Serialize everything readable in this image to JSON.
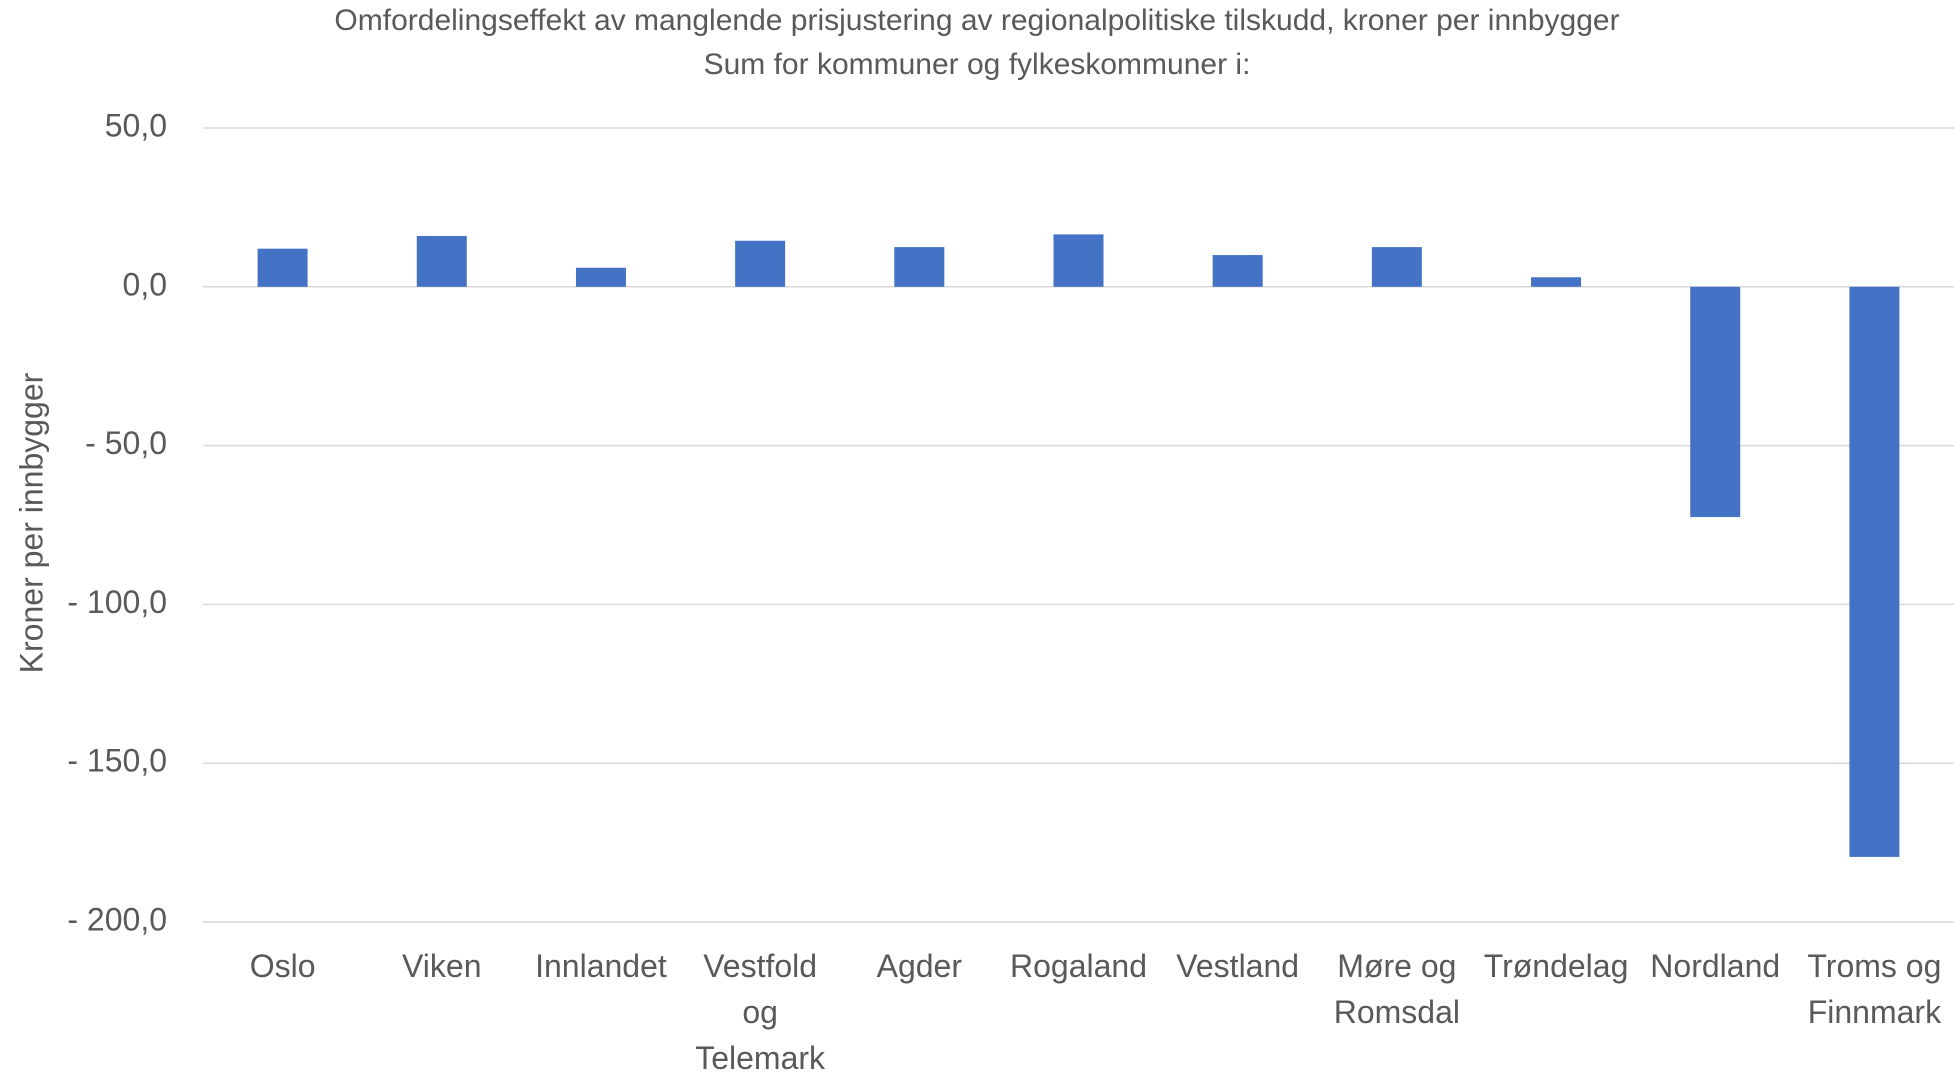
{
  "chart_data": {
    "type": "bar",
    "title": "Omfordelingseffekt av manglende prisjustering av regionalpolitiske tilskudd, kroner per innbygger",
    "subtitle": "Sum for kommuner og fylkeskommuner i:",
    "y_label": "Kroner per innbygger",
    "categories": [
      "Oslo",
      "Viken",
      "Innlandet",
      "Vestfold og Telemark",
      "Agder",
      "Rogaland",
      "Vestland",
      "Møre og Romsdal",
      "Trøndelag",
      "Nordland",
      "Troms og Finnmark"
    ],
    "values": [
      12,
      16,
      6,
      14.5,
      12.5,
      16.5,
      10,
      12.5,
      3,
      -72.5,
      -179.5
    ],
    "color": "#4472c4",
    "ylim": [
      -200,
      50
    ],
    "yticks": [
      {
        "value": -200,
        "label": "- 200,0"
      },
      {
        "value": -150,
        "label": "- 150,0"
      },
      {
        "value": -100,
        "label": "- 100,0"
      },
      {
        "value": -50,
        "label": "- 50,0"
      },
      {
        "value": 0,
        "label": "0,0"
      },
      {
        "value": 50,
        "label": "50,0"
      }
    ],
    "grid": true
  }
}
